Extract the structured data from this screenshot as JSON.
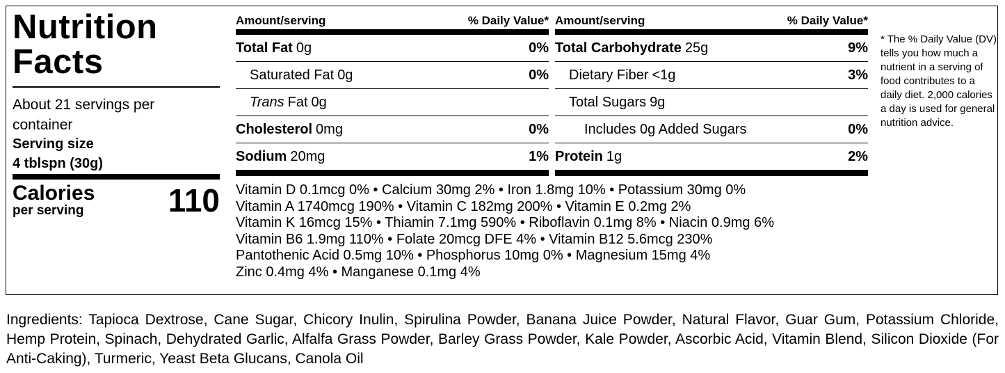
{
  "label": {
    "title": "Nutrition Facts",
    "servings": "About 21 servings per container",
    "serving_size_label": "Serving size",
    "serving_size": "4 tblspn (30g)",
    "calories_label": "Calories",
    "calories_sub": "per serving",
    "calories": 110,
    "left_table": {
      "header": {
        "amount": "Amount/serving",
        "dv": "% Daily Value*"
      },
      "rows": [
        {
          "name": "Total Fat",
          "amount": "0g",
          "dv": "0%"
        },
        {
          "name": "Saturated Fat",
          "amount": "0g",
          "dv": "0%"
        },
        {
          "name_italic": "Trans",
          "name": "Fat",
          "amount": "0g"
        },
        {
          "name": "Cholesterol",
          "amount": "0mg",
          "dv": "0%"
        },
        {
          "name": "Sodium",
          "amount": "20mg",
          "dv": "1%"
        }
      ]
    },
    "right_table": {
      "header": {
        "amount": "Amount/serving",
        "dv": "% Daily Value*"
      },
      "rows": [
        {
          "name": "Total Carbohydrate",
          "amount": "25g",
          "dv": "9%"
        },
        {
          "name": "Dietary Fiber",
          "amount": "<1g",
          "dv": "3%"
        },
        {
          "name": "Total Sugars",
          "amount": "9g"
        },
        {
          "name": "Includes 0g Added Sugars",
          "dv": "0%"
        },
        {
          "name": "Protein",
          "amount": "1g",
          "dv": "2%"
        }
      ]
    },
    "vitamins": [
      "Vitamin D 0.1mcg 0% • Calcium 30mg 2% • Iron 1.8mg 10% • Potassium 30mg 0%",
      "Vitamin A 1740mcg 190% • Vitamin C 182mg 200% • Vitamin E 0.2mg 2%",
      "Vitamin K 16mcg 15% • Thiamin 7.1mg 590% • Riboflavin 0.1mg 8% • Niacin 0.9mg 6%",
      "Vitamin B6 1.9mg 110% • Folate 20mcg DFE 4% • Vitamin B12 5.6mcg 230%",
      "Pantothenic Acid 0.5mg 10% • Phosphorus 10mg 0% • Magnesium 15mg 4%",
      "Zinc 0.4mg 4% • Manganese 0.1mg 4%"
    ],
    "footnote": "* The % Daily Value (DV) tells you how much a nutrient in a serving of food contributes to a daily diet. 2,000 calories a day is used for general nutrition advice.",
    "ingredients": "Ingredients: Tapioca Dextrose, Cane Sugar, Chicory Inulin, Spirulina Powder, Banana Juice Powder, Natural Flavor, Guar Gum, Potassium Chloride, Hemp Protein, Spinach, Dehydrated Garlic, Alfalfa Grass Powder, Barley Grass Powder, Kale Powder, Ascorbic Acid, Vitamin Blend, Silicon Dioxide (For Anti-Caking), Turmeric, Yeast Beta Glucans, Canola Oil"
  }
}
